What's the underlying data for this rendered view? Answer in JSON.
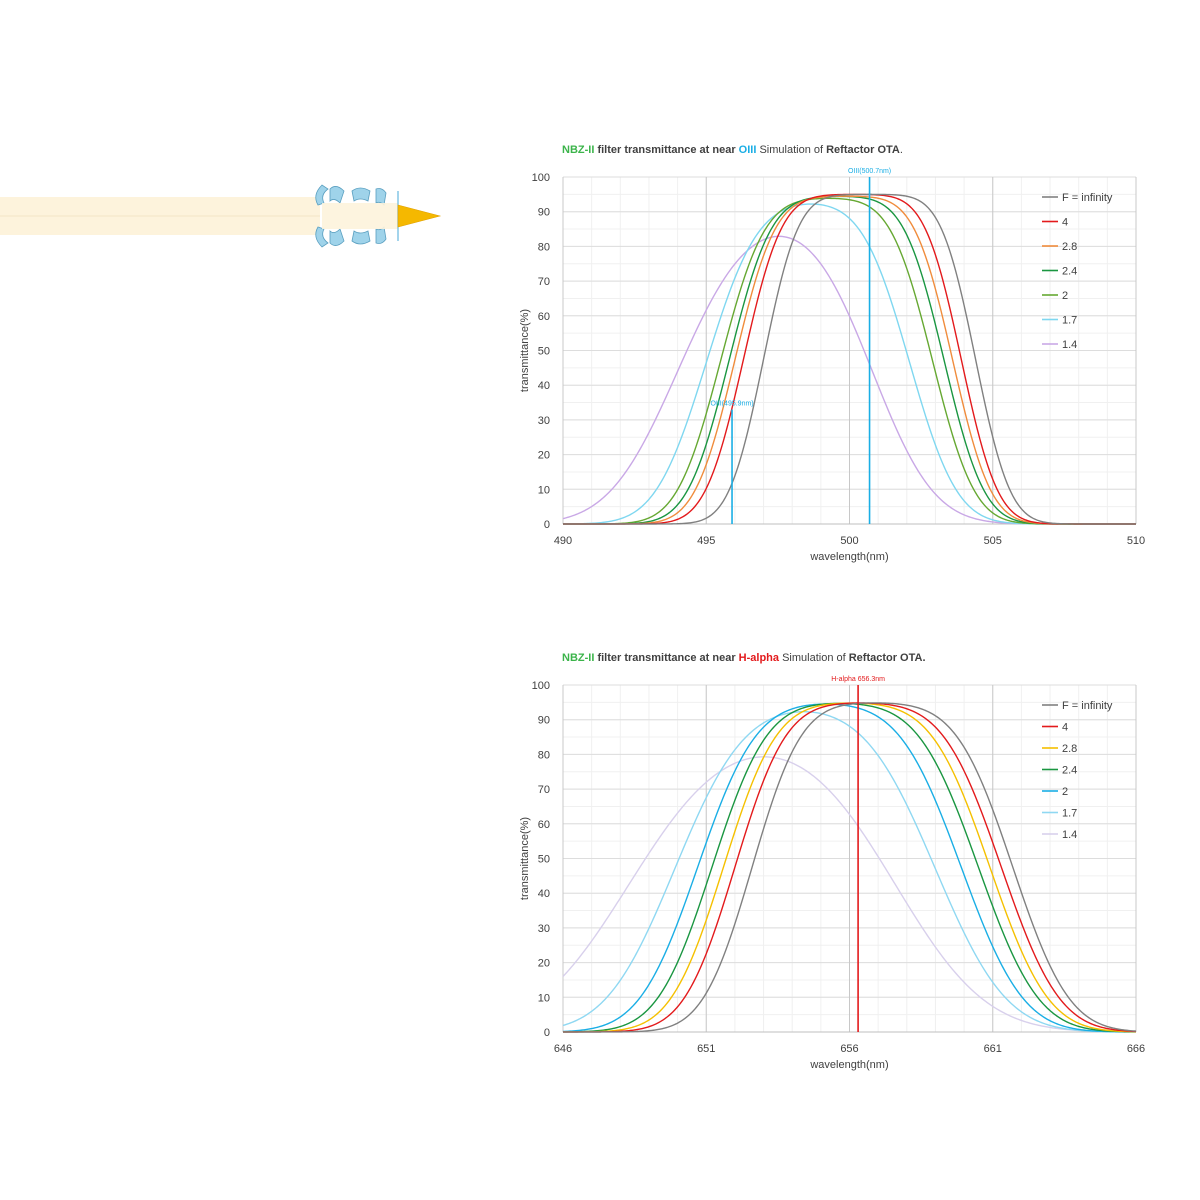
{
  "chart_data": [
    {
      "type": "line",
      "title": {
        "filter": "NBZ-II",
        "part1": " filter transmittance  at near ",
        "line": "OIII",
        "part2": "  Simulation of ",
        "bold": "Reftactor OTA",
        "end": "."
      },
      "xlabel": "wavelength(nm)",
      "ylabel": "transmittance(%)",
      "xlim": [
        490,
        510
      ],
      "ylim": [
        0,
        100
      ],
      "xticks": [
        "490",
        "495",
        "500",
        "505",
        "510"
      ],
      "yticks": [
        "0",
        "10",
        "20",
        "30",
        "40",
        "50",
        "60",
        "70",
        "80",
        "90",
        "100"
      ],
      "grid": true,
      "legend_position": "top-right",
      "markers": [
        {
          "label": "OIII(495.9nm)",
          "x": 495.9,
          "y_top": 33,
          "color": "#1aaee5"
        },
        {
          "label": "OIII(500.7nm)",
          "x": 500.7,
          "y_top": 100,
          "color": "#1aaee5"
        }
      ],
      "series": [
        {
          "name": "F = infinity",
          "color": "#808080",
          "peak": 95,
          "low_center": 497.0,
          "low_sigma": 0.95,
          "high_center": 504.4,
          "high_sigma": 0.95,
          "dip": 0
        },
        {
          "name": "4",
          "color": "#e31a1c",
          "peak": 95,
          "low_center": 496.3,
          "low_sigma": 1.05,
          "high_center": 503.9,
          "high_sigma": 1.0,
          "dip": 0
        },
        {
          "name": "2.8",
          "color": "#f08c3c",
          "peak": 94.5,
          "low_center": 496.0,
          "low_sigma": 1.1,
          "high_center": 503.6,
          "high_sigma": 1.05,
          "dip": 0
        },
        {
          "name": "2.4",
          "color": "#1a9641",
          "peak": 94.5,
          "low_center": 495.8,
          "low_sigma": 1.15,
          "high_center": 503.3,
          "high_sigma": 1.1,
          "dip": 0
        },
        {
          "name": "2",
          "color": "#66a832",
          "peak": 94,
          "low_center": 495.5,
          "low_sigma": 1.2,
          "high_center": 502.9,
          "high_sigma": 1.15,
          "dip": 0
        },
        {
          "name": "1.7",
          "color": "#7fd7f0",
          "peak": 93,
          "low_center": 495.0,
          "low_sigma": 1.4,
          "high_center": 502.1,
          "high_sigma": 1.3,
          "dip": 0
        },
        {
          "name": "1.4",
          "color": "#c9a8e6",
          "peak": 88,
          "low_center": 494.0,
          "low_sigma": 1.9,
          "high_center": 500.8,
          "high_sigma": 1.7,
          "dip": 0
        }
      ]
    },
    {
      "type": "line",
      "title": {
        "filter": "NBZ-II",
        "part1": " filter transmittance  at near ",
        "line": "H-alpha",
        "part2": "  Simulation of ",
        "bold": "Reftactor OTA",
        "end": "."
      },
      "xlabel": "wavelength(nm)",
      "ylabel": "transmittance(%)",
      "xlim": [
        646,
        666
      ],
      "ylim": [
        0,
        100
      ],
      "xticks": [
        "646",
        "651",
        "656",
        "661",
        "666"
      ],
      "yticks": [
        "0",
        "10",
        "20",
        "30",
        "40",
        "50",
        "60",
        "70",
        "80",
        "90",
        "100"
      ],
      "grid": true,
      "legend_position": "top-right",
      "markers": [
        {
          "label": "H-alpha 656.3nm",
          "x": 656.3,
          "y_top": 100,
          "color": "#e31a1c"
        }
      ],
      "series": [
        {
          "name": "F = infinity",
          "color": "#808080",
          "peak": 95,
          "low_center": 652.6,
          "low_sigma": 1.35,
          "high_center": 661.7,
          "high_sigma": 1.55,
          "dip": 0
        },
        {
          "name": "4",
          "color": "#e31a1c",
          "peak": 95,
          "low_center": 652.0,
          "low_sigma": 1.4,
          "high_center": 661.3,
          "high_sigma": 1.6,
          "dip": 0
        },
        {
          "name": "2.8",
          "color": "#f5c000",
          "peak": 95,
          "low_center": 651.6,
          "low_sigma": 1.45,
          "high_center": 660.9,
          "high_sigma": 1.6,
          "dip": 0
        },
        {
          "name": "2.4",
          "color": "#1a9641",
          "peak": 95,
          "low_center": 651.2,
          "low_sigma": 1.5,
          "high_center": 660.5,
          "high_sigma": 1.65,
          "dip": 0
        },
        {
          "name": "2",
          "color": "#1aaee5",
          "peak": 95,
          "low_center": 650.7,
          "low_sigma": 1.6,
          "high_center": 659.9,
          "high_sigma": 1.7,
          "dip": 0
        },
        {
          "name": "1.7",
          "color": "#8fd8f2",
          "peak": 94,
          "low_center": 649.9,
          "low_sigma": 1.9,
          "high_center": 659.0,
          "high_sigma": 1.95,
          "dip": 0
        },
        {
          "name": "1.4",
          "color": "#d8d0ec",
          "peak": 85,
          "low_center": 648.3,
          "low_sigma": 2.6,
          "high_center": 657.6,
          "high_sigma": 2.5,
          "dip": 0
        }
      ]
    }
  ],
  "diagram": {
    "beam_color": "#fdf3dc",
    "lens_color": "#9fd3ea",
    "lens_edge": "#5a9fc0",
    "cone_color": "#f5b800",
    "focal_line_color": "#66b8e0"
  }
}
